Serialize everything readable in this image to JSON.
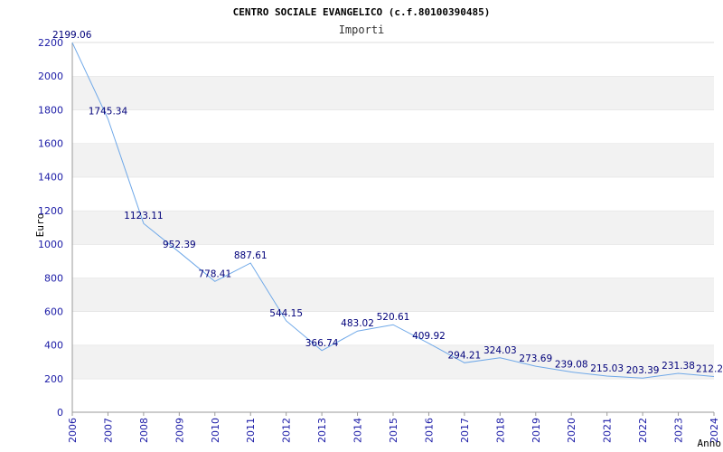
{
  "chart_data": {
    "type": "line",
    "title": "CENTRO SOCIALE EVANGELICO (c.f.80100390485)",
    "subtitle": "Importi",
    "xlabel": "Anno",
    "ylabel": "Euro",
    "ylim": [
      0,
      2200
    ],
    "yticks": [
      0,
      200,
      400,
      600,
      800,
      1000,
      1200,
      1400,
      1600,
      1800,
      2000,
      2200
    ],
    "grid": true,
    "x": [
      "2006",
      "2007",
      "2008",
      "2009",
      "2010",
      "2011",
      "2012",
      "2013",
      "2014",
      "2015",
      "2016",
      "2017",
      "2018",
      "2019",
      "2020",
      "2021",
      "2022",
      "2023",
      "2024"
    ],
    "series": [
      {
        "values": [
          2199.06,
          1745.34,
          1123.11,
          952.39,
          778.41,
          887.61,
          544.15,
          366.74,
          483.02,
          520.61,
          409.92,
          294.21,
          324.03,
          273.69,
          239.08,
          215.03,
          203.39,
          231.38,
          212.2
        ],
        "labels": [
          "2199.06",
          "1745.34",
          "1123.11",
          "952.39",
          "778.41",
          "887.61",
          "544.15",
          "366.74",
          "483.02",
          "520.61",
          "409.92",
          "294.21",
          "324.03",
          "273.69",
          "239.08",
          "215.03",
          "203.39",
          "231.38",
          "212.2"
        ]
      }
    ],
    "colors": {
      "line": "#6fa8e8",
      "band": "#f2f2f2",
      "gridline": "#dcdcdc",
      "tick": "#1a1aa6",
      "label": "#00007a"
    }
  }
}
